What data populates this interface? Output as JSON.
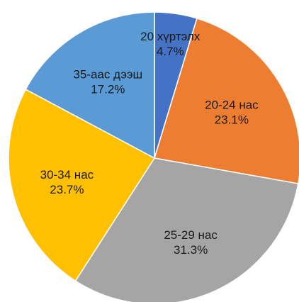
{
  "chart_data": {
    "type": "pie",
    "slices": [
      {
        "label": "20 хүртэлх",
        "value": 4.7,
        "value_label": "4.7%",
        "color": "#4472C4"
      },
      {
        "label": "20-24 нас",
        "value": 23.1,
        "value_label": "23.1%",
        "color": "#ED7D31"
      },
      {
        "label": "25-29 нас",
        "value": 31.3,
        "value_label": "31.3%",
        "color": "#A5A5A5"
      },
      {
        "label": "30-34 нас",
        "value": 23.7,
        "value_label": "23.7%",
        "color": "#FFC000"
      },
      {
        "label": "35-аас дээш",
        "value": 17.2,
        "value_label": "17.2%",
        "color": "#5B9BD5"
      }
    ],
    "start": "12 o'clock",
    "direction": "clockwise",
    "legend": "none",
    "data_labels": "category and percentage, inside slices"
  }
}
